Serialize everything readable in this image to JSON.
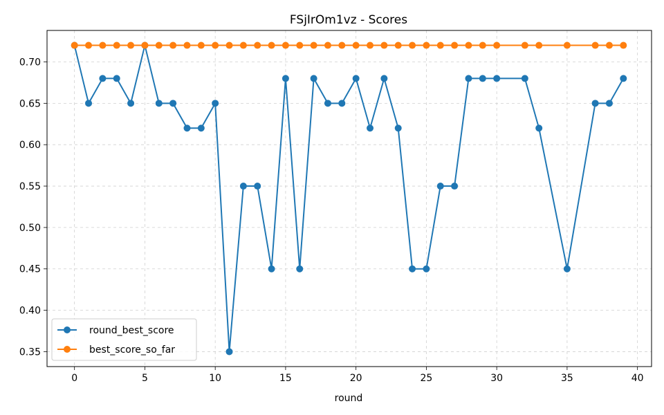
{
  "chart_data": {
    "type": "line",
    "title": "FSjIrOm1vz - Scores",
    "xlabel": "round",
    "ylabel": "",
    "xlim": [
      -1.95,
      41.0
    ],
    "ylim": [
      0.332,
      0.738
    ],
    "xticks": [
      0,
      5,
      10,
      15,
      20,
      25,
      30,
      35,
      40
    ],
    "yticks": [
      0.35,
      0.4,
      0.45,
      0.5,
      0.55,
      0.6,
      0.65,
      0.7
    ],
    "xtick_labels": [
      "0",
      "5",
      "10",
      "15",
      "20",
      "25",
      "30",
      "35",
      "40"
    ],
    "ytick_labels": [
      "0.35",
      "0.40",
      "0.45",
      "0.50",
      "0.55",
      "0.60",
      "0.65",
      "0.70"
    ],
    "grid": true,
    "legend_position": "lower-left",
    "series": [
      {
        "name": "round_best_score",
        "color": "#1f77b4",
        "x": [
          0,
          1,
          2,
          3,
          4,
          5,
          6,
          7,
          8,
          9,
          10,
          11,
          12,
          13,
          14,
          15,
          16,
          17,
          18,
          19,
          20,
          21,
          22,
          23,
          24,
          25,
          26,
          27,
          28,
          29,
          30,
          32,
          33,
          35,
          37,
          38,
          39
        ],
        "y": [
          0.72,
          0.65,
          0.68,
          0.68,
          0.65,
          0.72,
          0.65,
          0.65,
          0.62,
          0.62,
          0.65,
          0.35,
          0.55,
          0.55,
          0.45,
          0.68,
          0.45,
          0.68,
          0.65,
          0.65,
          0.68,
          0.62,
          0.68,
          0.62,
          0.45,
          0.45,
          0.55,
          0.55,
          0.68,
          0.68,
          0.68,
          0.68,
          0.62,
          0.45,
          0.65,
          0.65,
          0.68
        ]
      },
      {
        "name": "best_score_so_far",
        "color": "#ff7f0e",
        "x": [
          0,
          1,
          2,
          3,
          4,
          5,
          6,
          7,
          8,
          9,
          10,
          11,
          12,
          13,
          14,
          15,
          16,
          17,
          18,
          19,
          20,
          21,
          22,
          23,
          24,
          25,
          26,
          27,
          28,
          29,
          30,
          32,
          33,
          35,
          37,
          38,
          39
        ],
        "y": [
          0.72,
          0.72,
          0.72,
          0.72,
          0.72,
          0.72,
          0.72,
          0.72,
          0.72,
          0.72,
          0.72,
          0.72,
          0.72,
          0.72,
          0.72,
          0.72,
          0.72,
          0.72,
          0.72,
          0.72,
          0.72,
          0.72,
          0.72,
          0.72,
          0.72,
          0.72,
          0.72,
          0.72,
          0.72,
          0.72,
          0.72,
          0.72,
          0.72,
          0.72,
          0.72,
          0.72,
          0.72
        ]
      }
    ]
  }
}
